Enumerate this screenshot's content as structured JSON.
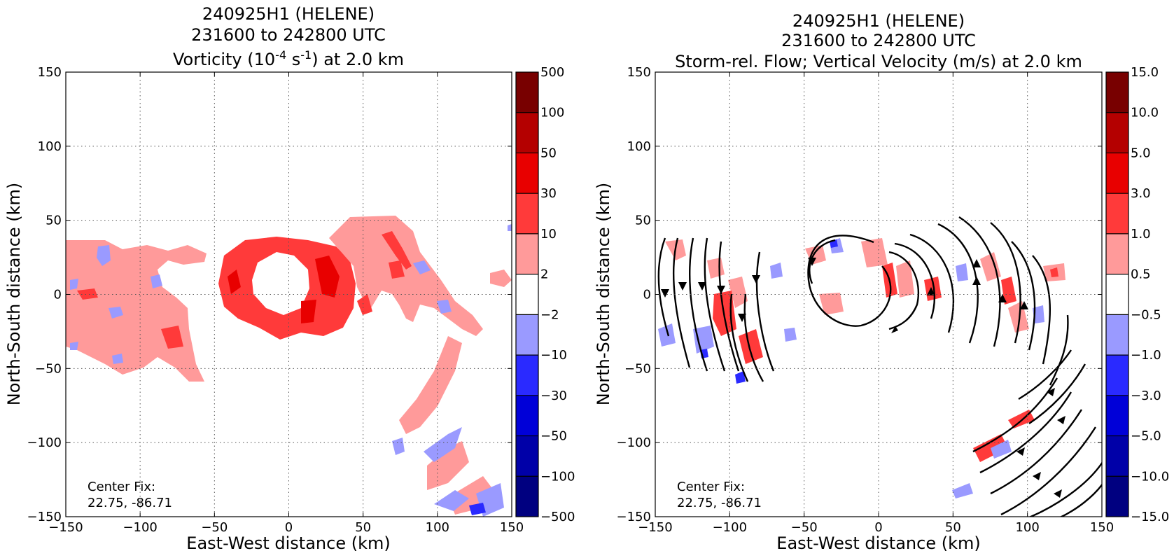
{
  "figure": {
    "type": "two-panel storm-centered plan view (filled contours)"
  },
  "chart_data": [
    {
      "type": "heatmap",
      "title_lines": [
        "240925H1 (HELENE)",
        "231600 to 242800 UTC",
        "Vorticity (10-4 s-1) at 2.0 km"
      ],
      "title_parts": {
        "line3_pre": "Vorticity (10",
        "line3_exp1": "-4",
        "line3_mid": " s",
        "line3_exp2": "-1",
        "line3_post": ") at 2.0 km"
      },
      "xlabel": "East-West distance (km)",
      "ylabel": "North-South distance (km)",
      "xlim": [
        -150,
        150
      ],
      "ylim": [
        -150,
        150
      ],
      "xticks": [
        -150,
        -100,
        -50,
        0,
        50,
        100,
        150
      ],
      "yticks": [
        -150,
        -100,
        -50,
        0,
        50,
        100,
        150
      ],
      "tick_labels": [
        "−150",
        "−100",
        "−50",
        "0",
        "50",
        "100",
        "150"
      ],
      "grid": true,
      "annotation": [
        "Center Fix:",
        "22.75, -86.71"
      ],
      "colorbar": {
        "levels": [
          "-500",
          "-100",
          "-50",
          "-30",
          "-10",
          "-2",
          "2",
          "10",
          "30",
          "50",
          "100",
          "500"
        ],
        "level_labels": [
          "−500",
          "−100",
          "−50",
          "−30",
          "−10",
          "−2",
          "2",
          "10",
          "30",
          "50",
          "100",
          "500"
        ],
        "colors": [
          "#000080",
          "#0000a8",
          "#0000d8",
          "#2a2aff",
          "#9a9aff",
          "#ffffff",
          "#ff9a9a",
          "#ff3a3a",
          "#e80000",
          "#b40000",
          "#780000"
        ]
      },
      "features": [
        {
          "label": "eyewall ring",
          "center_km": [
            0,
            10
          ],
          "radius_km": 35,
          "level": "10 to 30"
        },
        {
          "label": "northeast band",
          "extent_km": [
            [
              35,
              120
            ],
            [
              -40,
              50
            ]
          ],
          "level": "2 to 10"
        },
        {
          "label": "west band",
          "extent_km": [
            [
              -150,
              -55
            ],
            [
              -60,
              35
            ]
          ],
          "level": "2 to 10"
        },
        {
          "label": "southeast bands",
          "extent_km": [
            [
              70,
              150
            ],
            [
              -150,
              -40
            ]
          ],
          "level": "2 to 10 / -10 to -2"
        }
      ]
    },
    {
      "type": "heatmap",
      "title_lines": [
        "240925H1 (HELENE)",
        "231600 to 242800 UTC",
        "Storm-rel. Flow; Vertical Velocity (m/s) at 2.0 km"
      ],
      "xlabel": "East-West distance (km)",
      "ylabel": "North-South distance (km)",
      "xlim": [
        -150,
        150
      ],
      "ylim": [
        -150,
        150
      ],
      "xticks": [
        -150,
        -100,
        -50,
        0,
        50,
        100,
        150
      ],
      "yticks": [
        -150,
        -100,
        -50,
        0,
        50,
        100,
        150
      ],
      "tick_labels": [
        "−150",
        "−100",
        "−50",
        "0",
        "50",
        "100",
        "150"
      ],
      "grid": true,
      "annotation": [
        "Center Fix:",
        "22.75, -86.71"
      ],
      "overlay": "storm-relative streamlines",
      "colorbar": {
        "levels": [
          "-15.0",
          "-10.0",
          "-5.0",
          "-3.0",
          "-1.0",
          "-0.5",
          "0.5",
          "1.0",
          "3.0",
          "5.0",
          "10.0",
          "15.0"
        ],
        "level_labels": [
          "−15.0",
          "−10.0",
          "−5.0",
          "−3.0",
          "−1.0",
          "−0.5",
          "0.5",
          "1.0",
          "3.0",
          "5.0",
          "10.0",
          "15.0"
        ],
        "colors": [
          "#000080",
          "#0000a8",
          "#0000d8",
          "#2a2aff",
          "#9a9aff",
          "#ffffff",
          "#ff9a9a",
          "#ff3a3a",
          "#e80000",
          "#b40000",
          "#780000"
        ]
      }
    }
  ]
}
